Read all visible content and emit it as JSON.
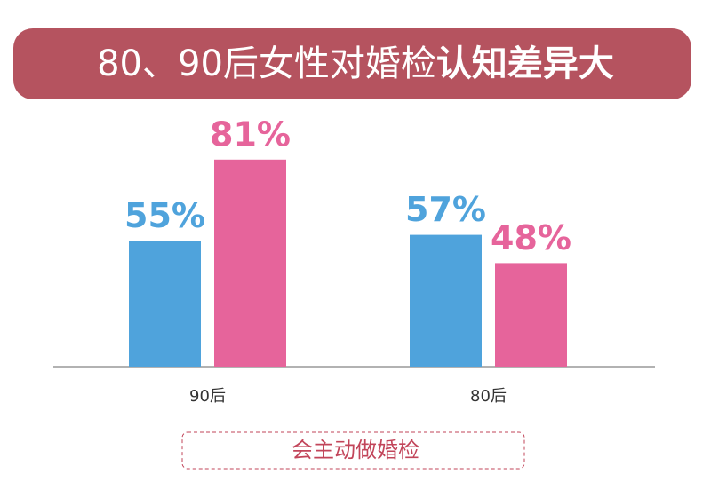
{
  "chart_data": {
    "type": "bar",
    "title": "80、90后女性对婚检",
    "title_emphasis": "认知差异大",
    "categories": [
      "90后",
      "80后"
    ],
    "series": [
      {
        "color": "#4fa3dc",
        "values": [
          55,
          57
        ],
        "value_labels": [
          "55%",
          "57%"
        ]
      },
      {
        "color": "#e6649b",
        "values": [
          81,
          48
        ],
        "value_labels": [
          "81%",
          "48%"
        ]
      }
    ],
    "ylim": [
      15,
      90
    ],
    "caption": "会主动做婚检"
  }
}
